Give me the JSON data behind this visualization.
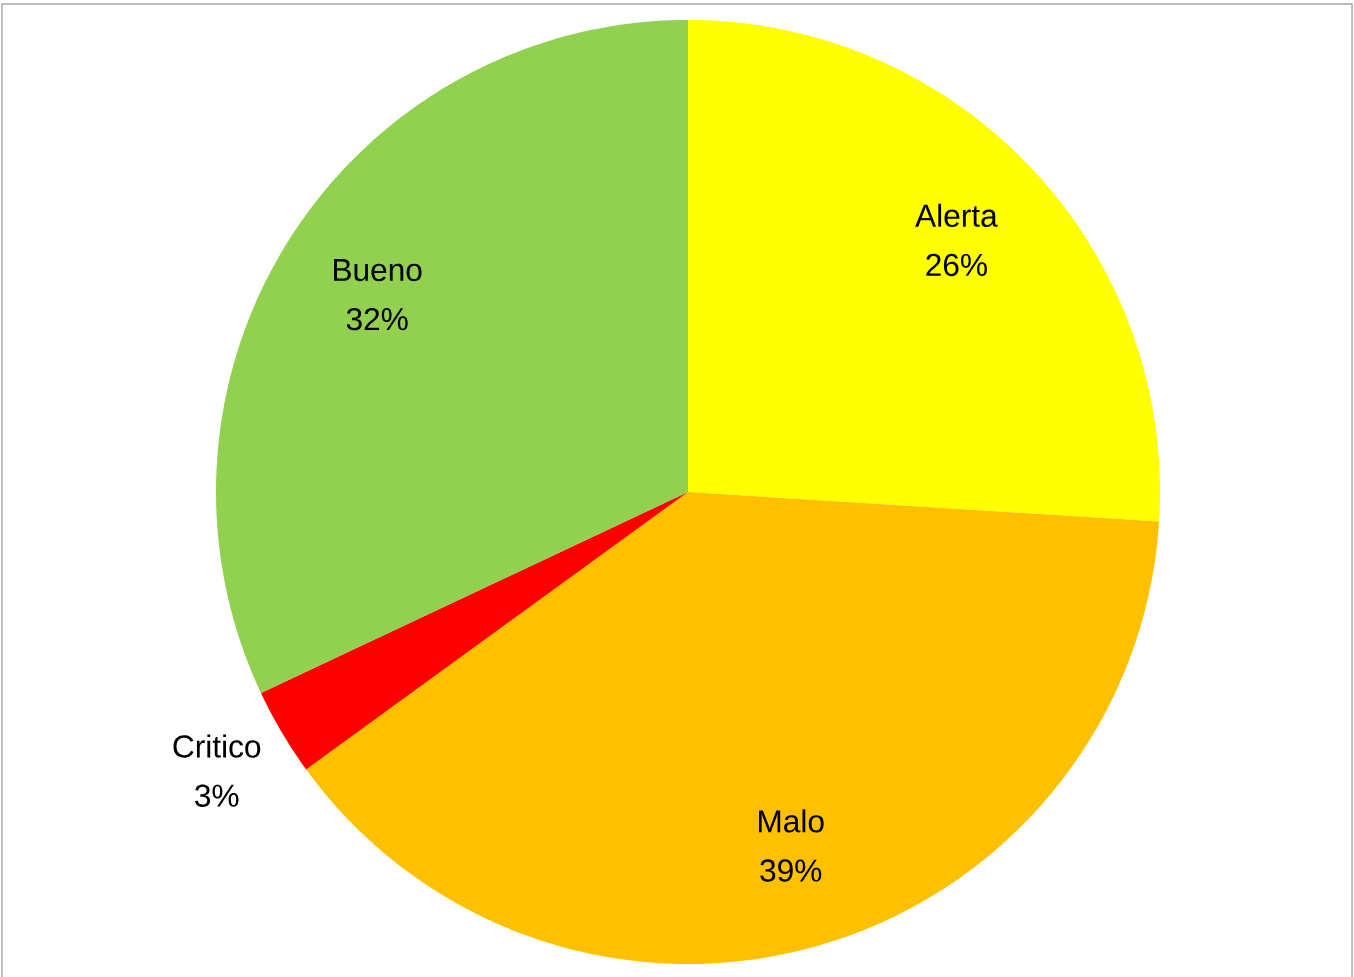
{
  "chart_data": {
    "type": "pie",
    "categories": [
      "Alerta",
      "Malo",
      "Critico",
      "Bueno"
    ],
    "values": [
      26,
      39,
      3,
      32
    ],
    "value_labels": [
      "26%",
      "39%",
      "3%",
      "32%"
    ],
    "colors": [
      "#ffff00",
      "#ffc000",
      "#ff0000",
      "#92d050"
    ]
  }
}
